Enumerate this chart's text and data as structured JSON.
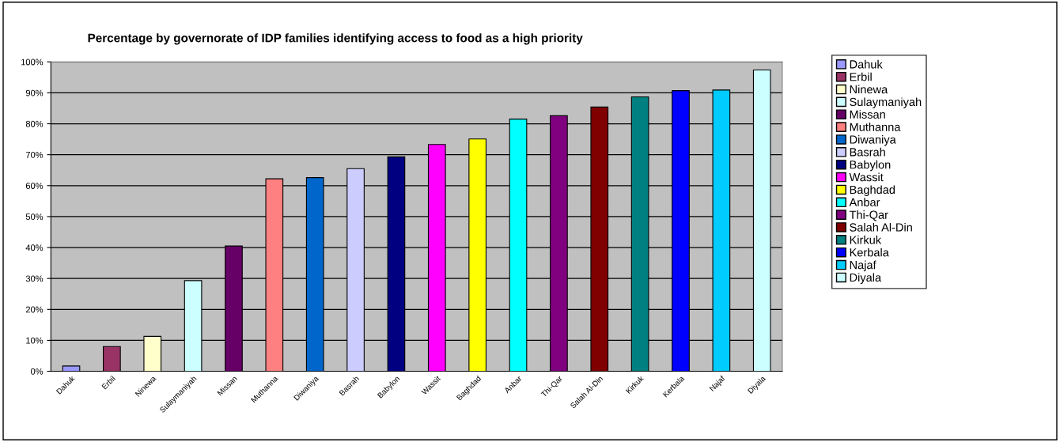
{
  "chart_data": {
    "type": "bar",
    "title": "Percentage by governorate of IDP families identifying access to food as a high priority",
    "categories": [
      "Dahuk",
      "Erbil",
      "Ninewa",
      "Sulaymaniyah",
      "Missan",
      "Muthanna",
      "Diwaniya",
      "Basrah",
      "Babylon",
      "Wassit",
      "Baghdad",
      "Anbar",
      "Thi-Qar",
      "Salah Al-Din",
      "Kirkuk",
      "Kerbala",
      "Najaf",
      "Diyala"
    ],
    "series": [
      {
        "name": "Dahuk",
        "color": "#9999ff",
        "values": [
          1.7,
          null,
          null,
          null,
          null,
          null,
          null,
          null,
          null,
          null,
          null,
          null,
          null,
          null,
          null,
          null,
          null,
          null
        ]
      },
      {
        "name": "Erbil",
        "color": "#993366",
        "values": [
          null,
          8,
          null,
          null,
          null,
          null,
          null,
          null,
          null,
          null,
          null,
          null,
          null,
          null,
          null,
          null,
          null,
          null
        ]
      },
      {
        "name": "Ninewa",
        "color": "#ffffcc",
        "values": [
          null,
          null,
          11.3,
          null,
          null,
          null,
          null,
          null,
          null,
          null,
          null,
          null,
          null,
          null,
          null,
          null,
          null,
          null
        ]
      },
      {
        "name": "Sulaymaniyah",
        "color": "#ccffff",
        "values": [
          null,
          null,
          null,
          29.3,
          null,
          null,
          null,
          null,
          null,
          null,
          null,
          null,
          null,
          null,
          null,
          null,
          null,
          null
        ]
      },
      {
        "name": "Missan",
        "color": "#660066",
        "values": [
          null,
          null,
          null,
          null,
          40.5,
          null,
          null,
          null,
          null,
          null,
          null,
          null,
          null,
          null,
          null,
          null,
          null,
          null
        ]
      },
      {
        "name": "Muthanna",
        "color": "#ff8080",
        "values": [
          null,
          null,
          null,
          null,
          null,
          62.2,
          null,
          null,
          null,
          null,
          null,
          null,
          null,
          null,
          null,
          null,
          null,
          null
        ]
      },
      {
        "name": "Diwaniya",
        "color": "#0066cc",
        "values": [
          null,
          null,
          null,
          null,
          null,
          null,
          62.6,
          null,
          null,
          null,
          null,
          null,
          null,
          null,
          null,
          null,
          null,
          null
        ]
      },
      {
        "name": "Basrah",
        "color": "#ccccff",
        "values": [
          null,
          null,
          null,
          null,
          null,
          null,
          null,
          65.5,
          null,
          null,
          null,
          null,
          null,
          null,
          null,
          null,
          null,
          null
        ]
      },
      {
        "name": "Babylon",
        "color": "#000080",
        "values": [
          null,
          null,
          null,
          null,
          null,
          null,
          null,
          null,
          69.3,
          null,
          null,
          null,
          null,
          null,
          null,
          null,
          null,
          null
        ]
      },
      {
        "name": "Wassit",
        "color": "#ff00ff",
        "values": [
          null,
          null,
          null,
          null,
          null,
          null,
          null,
          null,
          null,
          73.3,
          null,
          null,
          null,
          null,
          null,
          null,
          null,
          null
        ]
      },
      {
        "name": "Baghdad",
        "color": "#ffff00",
        "values": [
          null,
          null,
          null,
          null,
          null,
          null,
          null,
          null,
          null,
          null,
          75.1,
          null,
          null,
          null,
          null,
          null,
          null,
          null
        ]
      },
      {
        "name": "Anbar",
        "color": "#00ffff",
        "values": [
          null,
          null,
          null,
          null,
          null,
          null,
          null,
          null,
          null,
          null,
          null,
          81.5,
          null,
          null,
          null,
          null,
          null,
          null
        ]
      },
      {
        "name": "Thi-Qar",
        "color": "#800080",
        "values": [
          null,
          null,
          null,
          null,
          null,
          null,
          null,
          null,
          null,
          null,
          null,
          null,
          82.6,
          null,
          null,
          null,
          null,
          null
        ]
      },
      {
        "name": "Salah Al-Din",
        "color": "#800000",
        "values": [
          null,
          null,
          null,
          null,
          null,
          null,
          null,
          null,
          null,
          null,
          null,
          null,
          null,
          85.4,
          null,
          null,
          null,
          null
        ]
      },
      {
        "name": "Kirkuk",
        "color": "#008080",
        "values": [
          null,
          null,
          null,
          null,
          null,
          null,
          null,
          null,
          null,
          null,
          null,
          null,
          null,
          null,
          88.7,
          null,
          null,
          null
        ]
      },
      {
        "name": "Kerbala",
        "color": "#0000ff",
        "values": [
          null,
          null,
          null,
          null,
          null,
          null,
          null,
          null,
          null,
          null,
          null,
          null,
          null,
          null,
          null,
          90.7,
          null,
          null
        ]
      },
      {
        "name": "Najaf",
        "color": "#00ccff",
        "values": [
          null,
          null,
          null,
          null,
          null,
          null,
          null,
          null,
          null,
          null,
          null,
          null,
          null,
          null,
          null,
          null,
          90.9,
          null
        ]
      },
      {
        "name": "Diyala",
        "color": "#ccffff",
        "values": [
          null,
          null,
          null,
          null,
          null,
          null,
          null,
          null,
          null,
          null,
          null,
          null,
          null,
          null,
          null,
          null,
          null,
          97.4
        ]
      }
    ],
    "ylim": [
      0,
      100
    ],
    "yticks": [
      {
        "value": 0,
        "label": "0%"
      },
      {
        "value": 10,
        "label": "10%"
      },
      {
        "value": 20,
        "label": "20%"
      },
      {
        "value": 30,
        "label": "30%"
      },
      {
        "value": 40,
        "label": "40%"
      },
      {
        "value": 50,
        "label": "50%"
      },
      {
        "value": 60,
        "label": "60%"
      },
      {
        "value": 70,
        "label": "70%"
      },
      {
        "value": 80,
        "label": "80%"
      },
      {
        "value": 90,
        "label": "90%"
      },
      {
        "value": 100,
        "label": "100%"
      }
    ],
    "grid": "y",
    "legend": "right"
  }
}
